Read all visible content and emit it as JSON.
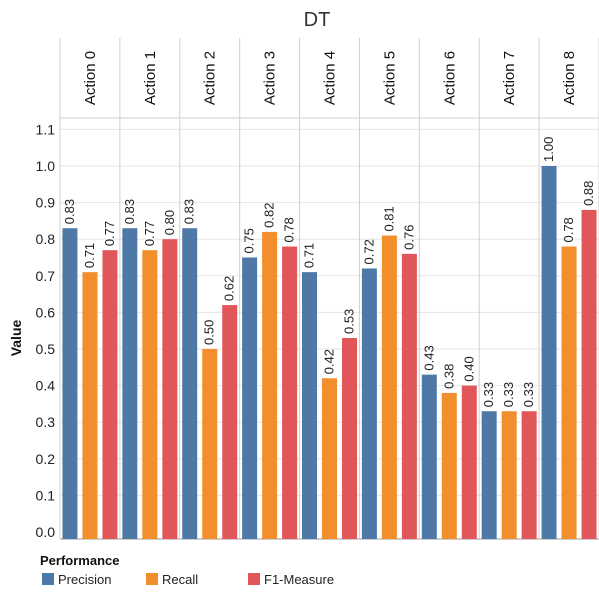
{
  "chart_data": {
    "type": "bar",
    "title": "DT",
    "ylabel": "Value",
    "ylim": [
      0.0,
      1.13
    ],
    "yticks": [
      "1.1",
      "1.0",
      "0.9",
      "0.8",
      "0.7",
      "0.6",
      "0.5",
      "0.4",
      "0.3",
      "0.2",
      "0.1",
      "0.0"
    ],
    "categories": [
      "Action 0",
      "Action 1",
      "Action 2",
      "Action 3",
      "Action 4",
      "Action 5",
      "Action 6",
      "Action 7",
      "Action 8"
    ],
    "legend_title": "Performance",
    "legend_position": "bottom-left",
    "grid": true,
    "series": [
      {
        "name": "Precision",
        "color": "#4e79a7",
        "values": [
          0.83,
          0.83,
          0.83,
          0.75,
          0.71,
          0.72,
          0.43,
          0.33,
          1.0
        ],
        "labels": [
          "0.83",
          "0.83",
          "0.83",
          "0.75",
          "0.71",
          "0.72",
          "0.43",
          "0.33",
          "1.00"
        ]
      },
      {
        "name": "Recall",
        "color": "#f28e2b",
        "values": [
          0.71,
          0.77,
          0.5,
          0.82,
          0.42,
          0.81,
          0.38,
          0.33,
          0.78
        ],
        "labels": [
          "0.71",
          "0.77",
          "0.50",
          "0.82",
          "0.42",
          "0.81",
          "0.38",
          "0.33",
          "0.78"
        ]
      },
      {
        "name": "F1-Measure",
        "color": "#e15759",
        "values": [
          0.77,
          0.8,
          0.62,
          0.78,
          0.53,
          0.76,
          0.4,
          0.33,
          0.88
        ],
        "labels": [
          "0.77",
          "0.80",
          "0.62",
          "0.78",
          "0.53",
          "0.76",
          "0.40",
          "0.33",
          "0.88"
        ]
      }
    ]
  }
}
